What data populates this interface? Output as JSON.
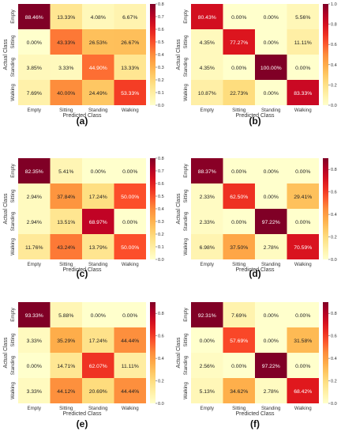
{
  "colorscale": {
    "stops": [
      "#ffffcc",
      "#ffeda0",
      "#fed976",
      "#feb24c",
      "#fd8d3c",
      "#fc4e2a",
      "#e31a1c",
      "#bd0026",
      "#800026"
    ]
  },
  "chart_data": [
    {
      "type": "heatmap",
      "panel_label": "(a)",
      "xlabel": "Predicted Class",
      "ylabel": "Actual Class",
      "x_categories": [
        "Empty",
        "Sitting",
        "Standing",
        "Walking"
      ],
      "y_categories": [
        "Empty",
        "Sitting",
        "Standing",
        "Walking"
      ],
      "values": [
        [
          88.46,
          13.33,
          4.08,
          6.67
        ],
        [
          0.0,
          43.33,
          26.53,
          26.67
        ],
        [
          3.85,
          3.33,
          44.9,
          13.33
        ],
        [
          7.69,
          40.0,
          24.49,
          53.33
        ]
      ],
      "cell_labels": [
        [
          "88.46%",
          "13.33%",
          "4.08%",
          "6.67%"
        ],
        [
          "0.00%",
          "43.33%",
          "26.53%",
          "26.67%"
        ],
        [
          "3.85%",
          "3.33%",
          "44.90%",
          "13.33%"
        ],
        [
          "7.69%",
          "40.00%",
          "24.49%",
          "53.33%"
        ]
      ],
      "colorbar": {
        "min": 0,
        "max": 0.8,
        "ticks": [
          "0.0",
          "0.1",
          "0.2",
          "0.3",
          "0.4",
          "0.5",
          "0.6",
          "0.7",
          "0.8"
        ]
      }
    },
    {
      "type": "heatmap",
      "panel_label": "(b)",
      "xlabel": "Predicted Class",
      "ylabel": "Actual Class",
      "x_categories": [
        "Empty",
        "Sitting",
        "Standing",
        "Walking"
      ],
      "y_categories": [
        "Empty",
        "Sitting",
        "Standing",
        "Walking"
      ],
      "values": [
        [
          80.43,
          0.0,
          0.0,
          5.56
        ],
        [
          4.35,
          77.27,
          0.0,
          11.11
        ],
        [
          4.35,
          0.0,
          100.0,
          0.0
        ],
        [
          10.87,
          22.73,
          0.0,
          83.33
        ]
      ],
      "cell_labels": [
        [
          "80.43%",
          "0.00%",
          "0.00%",
          "5.56%"
        ],
        [
          "4.35%",
          "77.27%",
          "0.00%",
          "11.11%"
        ],
        [
          "4.35%",
          "0.00%",
          "100.00%",
          "0.00%"
        ],
        [
          "10.87%",
          "22.73%",
          "0.00%",
          "83.33%"
        ]
      ],
      "colorbar": {
        "min": 0,
        "max": 1.0,
        "ticks": [
          "0.0",
          "0.2",
          "0.4",
          "0.6",
          "0.8",
          "1.0"
        ]
      }
    },
    {
      "type": "heatmap",
      "panel_label": "(c)",
      "xlabel": "Predicted Class",
      "ylabel": "Actual Class",
      "x_categories": [
        "Empty",
        "Sitting",
        "Standing",
        "Walking"
      ],
      "y_categories": [
        "Empty",
        "Sitting",
        "Standing",
        "Walking"
      ],
      "values": [
        [
          82.35,
          5.41,
          0.0,
          0.0
        ],
        [
          2.94,
          37.84,
          17.24,
          50.0
        ],
        [
          2.94,
          13.51,
          68.97,
          0.0
        ],
        [
          11.76,
          43.24,
          13.79,
          50.0
        ]
      ],
      "cell_labels": [
        [
          "82.35%",
          "5.41%",
          "0.00%",
          "0.00%"
        ],
        [
          "2.94%",
          "37.84%",
          "17.24%",
          "50.00%"
        ],
        [
          "2.94%",
          "13.51%",
          "68.97%",
          "0.00%"
        ],
        [
          "11.76%",
          "43.24%",
          "13.79%",
          "50.00%"
        ]
      ],
      "colorbar": {
        "min": 0,
        "max": 0.8,
        "ticks": [
          "0.0",
          "0.1",
          "0.2",
          "0.3",
          "0.4",
          "0.5",
          "0.6",
          "0.7",
          "0.8"
        ]
      }
    },
    {
      "type": "heatmap",
      "panel_label": "(d)",
      "xlabel": "Predicted Class",
      "ylabel": "Actual Class",
      "x_categories": [
        "Empty",
        "Sitting",
        "Standing",
        "Walking"
      ],
      "y_categories": [
        "Empty",
        "Sitting",
        "Standing",
        "Walking"
      ],
      "values": [
        [
          88.37,
          0.0,
          0.0,
          0.0
        ],
        [
          2.33,
          62.5,
          0.0,
          29.41
        ],
        [
          2.33,
          0.0,
          97.22,
          0.0
        ],
        [
          6.98,
          37.5,
          2.78,
          70.59
        ]
      ],
      "cell_labels": [
        [
          "88.37%",
          "0.00%",
          "0.00%",
          "0.00%"
        ],
        [
          "2.33%",
          "62.50%",
          "0.00%",
          "29.41%"
        ],
        [
          "2.33%",
          "0.00%",
          "97.22%",
          "0.00%"
        ],
        [
          "6.98%",
          "37.50%",
          "2.78%",
          "70.59%"
        ]
      ],
      "colorbar": {
        "min": 0,
        "max": 0.9,
        "ticks": [
          "0.0",
          "0.2",
          "0.4",
          "0.6",
          "0.8"
        ]
      }
    },
    {
      "type": "heatmap",
      "panel_label": "(e)",
      "xlabel": "Predicted Class",
      "ylabel": "Actual Class",
      "x_categories": [
        "Empty",
        "Sitting",
        "Standing",
        "Walking"
      ],
      "y_categories": [
        "Empty",
        "Sitting",
        "Standing",
        "Walking"
      ],
      "values": [
        [
          93.33,
          5.88,
          0.0,
          0.0
        ],
        [
          3.33,
          35.29,
          17.24,
          44.44
        ],
        [
          0.0,
          14.71,
          62.07,
          11.11
        ],
        [
          3.33,
          44.12,
          20.69,
          44.44
        ]
      ],
      "cell_labels": [
        [
          "93.33%",
          "5.88%",
          "0.00%",
          "0.00%"
        ],
        [
          "3.33%",
          "35.29%",
          "17.24%",
          "44.44%"
        ],
        [
          "0.00%",
          "14.71%",
          "62.07%",
          "11.11%"
        ],
        [
          "3.33%",
          "44.12%",
          "20.69%",
          "44.44%"
        ]
      ],
      "colorbar": {
        "min": 0,
        "max": 0.9,
        "ticks": [
          "0.0",
          "0.2",
          "0.4",
          "0.6",
          "0.8"
        ]
      }
    },
    {
      "type": "heatmap",
      "panel_label": "(f)",
      "xlabel": "Predicted Class",
      "ylabel": "Actual Class",
      "x_categories": [
        "Empty",
        "Sitting",
        "Standing",
        "Walking"
      ],
      "y_categories": [
        "Empty",
        "Sitting",
        "Standing",
        "Walking"
      ],
      "values": [
        [
          92.31,
          7.69,
          0.0,
          0.0
        ],
        [
          0.0,
          57.69,
          0.0,
          31.58
        ],
        [
          2.56,
          0.0,
          97.22,
          0.0
        ],
        [
          5.13,
          34.62,
          2.78,
          68.42
        ]
      ],
      "cell_labels": [
        [
          "92.31%",
          "7.69%",
          "0.00%",
          "0.00%"
        ],
        [
          "0.00%",
          "57.69%",
          "0.00%",
          "31.58%"
        ],
        [
          "2.56%",
          "0.00%",
          "97.22%",
          "0.00%"
        ],
        [
          "5.13%",
          "34.62%",
          "2.78%",
          "68.42%"
        ]
      ],
      "colorbar": {
        "min": 0,
        "max": 0.9,
        "ticks": [
          "0.0",
          "0.2",
          "0.4",
          "0.6",
          "0.8"
        ]
      }
    }
  ]
}
